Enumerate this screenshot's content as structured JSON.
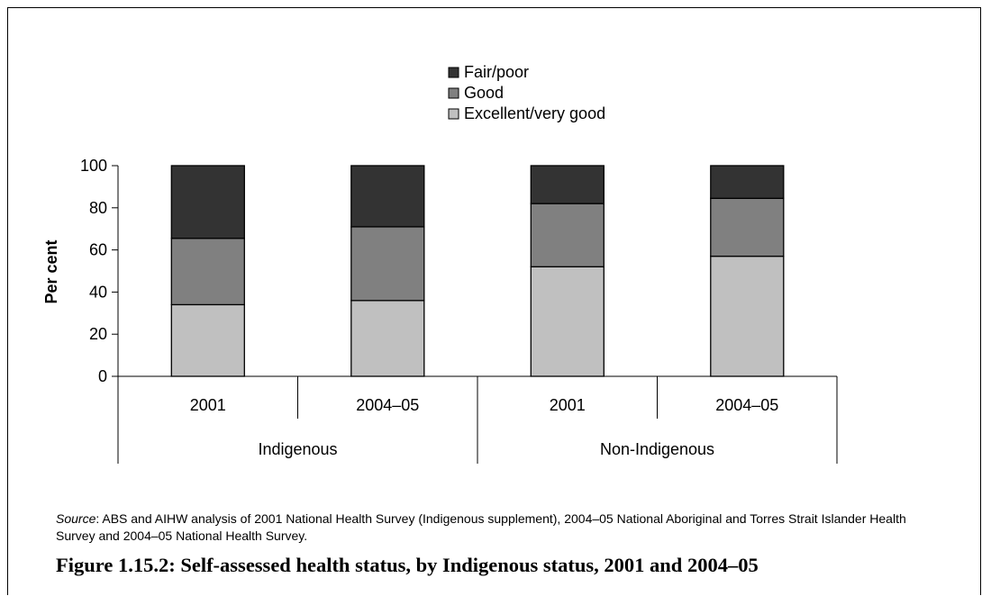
{
  "chart_data": {
    "type": "bar",
    "stacked": true,
    "categories": [
      "2001",
      "2004–05",
      "2001",
      "2004–05"
    ],
    "groups": [
      {
        "label": "Indigenous",
        "categories": [
          "2001",
          "2004–05"
        ]
      },
      {
        "label": "Non-Indigenous",
        "categories": [
          "2001",
          "2004–05"
        ]
      }
    ],
    "series": [
      {
        "name": "Excellent/very good",
        "color": "#c0c0c0",
        "values": [
          34,
          36,
          52,
          57
        ]
      },
      {
        "name": "Good",
        "color": "#808080",
        "values": [
          31.5,
          35,
          30,
          27.5
        ]
      },
      {
        "name": "Fair/poor",
        "color": "#333333",
        "values": [
          34.5,
          29,
          18,
          15.5
        ]
      }
    ],
    "legend_order": [
      "Fair/poor",
      "Good",
      "Excellent/very good"
    ],
    "legend_position": "top",
    "ylabel": "Per cent",
    "ylim": [
      0,
      100
    ],
    "yticks": [
      "0",
      "20",
      "40",
      "60",
      "80",
      "100"
    ],
    "grid": false
  },
  "source": {
    "label": "Source",
    "text": ": ABS and AIHW analysis of 2001 National Health Survey (Indigenous supplement), 2004–05 National Aboriginal and Torres Strait Islander Health Survey and 2004–05 National Health Survey."
  },
  "caption": "Figure 1.15.2: Self-assessed health status, by Indigenous status, 2001 and 2004–05"
}
